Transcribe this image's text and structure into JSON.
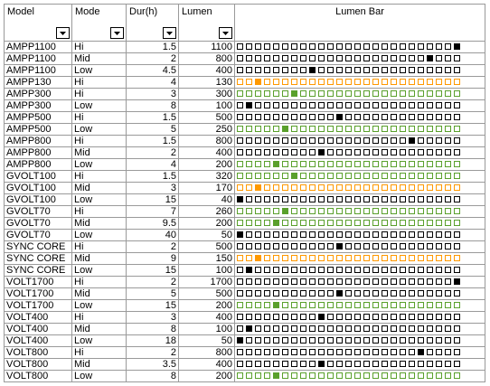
{
  "colors": {
    "low": "#ff9900",
    "mid": "#5aa02c",
    "high": "#000000"
  },
  "headers": {
    "model": "Model",
    "mode": "Mode",
    "dur": "Dur(h)",
    "lumen": "Lumen",
    "bar": "Lumen Bar"
  },
  "bar_slots": 25,
  "rows": [
    {
      "model": "AMPP1100",
      "mode": "Hi",
      "dur": "1.5",
      "lumen": "1100",
      "bold": true,
      "level": 25,
      "color": "high"
    },
    {
      "model": "AMPP1100",
      "mode": "Mid",
      "dur": "2",
      "lumen": "800",
      "bold": true,
      "level": 22,
      "color": "high"
    },
    {
      "model": "AMPP1100",
      "mode": "Low",
      "dur": "4.5",
      "lumen": "400",
      "bold": true,
      "level": 9,
      "color": "high"
    },
    {
      "model": "AMPP130",
      "mode": "Hi",
      "dur": "4",
      "lumen": "130",
      "bold": false,
      "level": 3,
      "color": "low"
    },
    {
      "model": "AMPP300",
      "mode": "Hi",
      "dur": "3",
      "lumen": "300",
      "bold": false,
      "level": 7,
      "color": "mid"
    },
    {
      "model": "AMPP300",
      "mode": "Low",
      "dur": "8",
      "lumen": "100",
      "bold": false,
      "level": 2,
      "color": "high"
    },
    {
      "model": "AMPP500",
      "mode": "Hi",
      "dur": "1.5",
      "lumen": "500",
      "bold": false,
      "level": 12,
      "color": "high"
    },
    {
      "model": "AMPP500",
      "mode": "Low",
      "dur": "5",
      "lumen": "250",
      "bold": false,
      "level": 6,
      "color": "mid"
    },
    {
      "model": "AMPP800",
      "mode": "Hi",
      "dur": "1.5",
      "lumen": "800",
      "bold": false,
      "level": 20,
      "color": "high"
    },
    {
      "model": "AMPP800",
      "mode": "Mid",
      "dur": "2",
      "lumen": "400",
      "bold": false,
      "level": 10,
      "color": "high"
    },
    {
      "model": "AMPP800",
      "mode": "Low",
      "dur": "4",
      "lumen": "200",
      "bold": false,
      "level": 5,
      "color": "mid"
    },
    {
      "model": "GVOLT100",
      "mode": "Hi",
      "dur": "1.5",
      "lumen": "320",
      "bold": false,
      "level": 7,
      "color": "mid"
    },
    {
      "model": "GVOLT100",
      "mode": "Mid",
      "dur": "3",
      "lumen": "170",
      "bold": false,
      "level": 3,
      "color": "low"
    },
    {
      "model": "GVOLT100",
      "mode": "Low",
      "dur": "15",
      "lumen": "40",
      "bold": false,
      "level": 1,
      "color": "high"
    },
    {
      "model": "GVOLT70",
      "mode": "Hi",
      "dur": "7",
      "lumen": "260",
      "bold": false,
      "level": 6,
      "color": "mid"
    },
    {
      "model": "GVOLT70",
      "mode": "Mid",
      "dur": "9.5",
      "lumen": "200",
      "bold": false,
      "level": 5,
      "color": "mid"
    },
    {
      "model": "GVOLT70",
      "mode": "Low",
      "dur": "40",
      "lumen": "50",
      "bold": false,
      "level": 1,
      "color": "high"
    },
    {
      "model": "SYNC CORE",
      "mode": "Hi",
      "dur": "2",
      "lumen": "500",
      "bold": false,
      "level": 12,
      "color": "high"
    },
    {
      "model": "SYNC CORE",
      "mode": "Mid",
      "dur": "9",
      "lumen": "150",
      "bold": false,
      "level": 3,
      "color": "low"
    },
    {
      "model": "SYNC CORE",
      "mode": "Low",
      "dur": "15",
      "lumen": "100",
      "bold": false,
      "level": 2,
      "color": "high"
    },
    {
      "model": "VOLT1700",
      "mode": "Hi",
      "dur": "2",
      "lumen": "1700",
      "bold": true,
      "level": 25,
      "color": "high"
    },
    {
      "model": "VOLT1700",
      "mode": "Mid",
      "dur": "5",
      "lumen": "500",
      "bold": true,
      "level": 12,
      "color": "high"
    },
    {
      "model": "VOLT1700",
      "mode": "Low",
      "dur": "15",
      "lumen": "200",
      "bold": true,
      "level": 5,
      "color": "mid"
    },
    {
      "model": "VOLT400",
      "mode": "Hi",
      "dur": "3",
      "lumen": "400",
      "bold": false,
      "level": 10,
      "color": "high"
    },
    {
      "model": "VOLT400",
      "mode": "Mid",
      "dur": "8",
      "lumen": "100",
      "bold": false,
      "level": 2,
      "color": "high"
    },
    {
      "model": "VOLT400",
      "mode": "Low",
      "dur": "18",
      "lumen": "50",
      "bold": false,
      "level": 1,
      "color": "high"
    },
    {
      "model": "VOLT800",
      "mode": "Hi",
      "dur": "2",
      "lumen": "800",
      "bold": false,
      "level": 21,
      "color": "high"
    },
    {
      "model": "VOLT800",
      "mode": "Mid",
      "dur": "3.5",
      "lumen": "400",
      "bold": false,
      "level": 10,
      "color": "high"
    },
    {
      "model": "VOLT800",
      "mode": "Low",
      "dur": "8",
      "lumen": "200",
      "bold": false,
      "level": 5,
      "color": "mid"
    }
  ]
}
